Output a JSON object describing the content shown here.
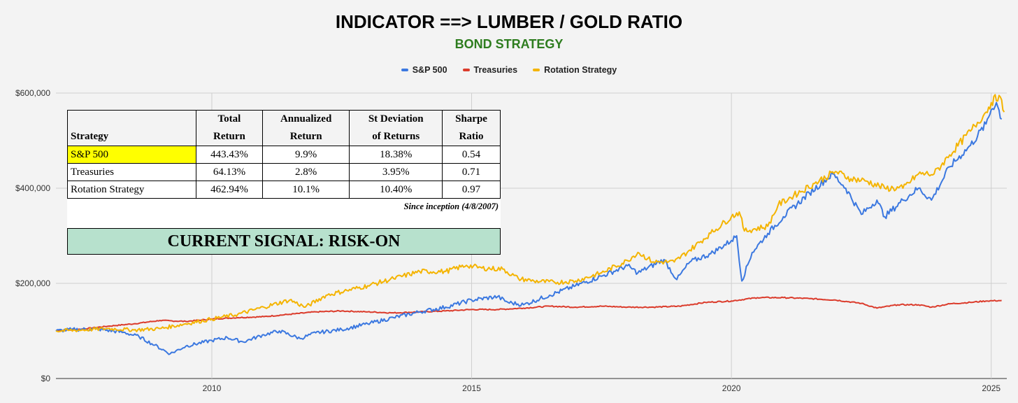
{
  "chart_data": {
    "type": "line",
    "title": "INDICATOR ==> LUMBER / GOLD RATIO",
    "subtitle": "BOND STRATEGY",
    "ylim": [
      0,
      600000
    ],
    "xlim": [
      2007.0,
      2025.3
    ],
    "y_ticks": [
      0,
      200000,
      400000,
      600000
    ],
    "y_tick_labels": [
      "$0",
      "$200,000",
      "$400,000",
      "$600,000"
    ],
    "x_ticks": [
      2010,
      2015,
      2020,
      2025
    ],
    "x_tick_labels": [
      "2010",
      "2015",
      "2020",
      "2025"
    ],
    "grid": true,
    "legend_position": "top",
    "series": [
      {
        "name": "S&P 500",
        "color": "#3b78e0",
        "points": [
          [
            2007.0,
            100000
          ],
          [
            2007.3,
            103000
          ],
          [
            2007.8,
            104000
          ],
          [
            2008.3,
            97000
          ],
          [
            2008.6,
            88000
          ],
          [
            2008.9,
            70000
          ],
          [
            2009.2,
            52000
          ],
          [
            2009.5,
            68000
          ],
          [
            2010.0,
            80000
          ],
          [
            2010.3,
            86000
          ],
          [
            2010.6,
            77000
          ],
          [
            2011.0,
            92000
          ],
          [
            2011.3,
            100000
          ],
          [
            2011.7,
            84000
          ],
          [
            2012.0,
            96000
          ],
          [
            2012.5,
            103000
          ],
          [
            2013.0,
            115000
          ],
          [
            2013.5,
            128000
          ],
          [
            2014.0,
            140000
          ],
          [
            2014.5,
            150000
          ],
          [
            2015.0,
            165000
          ],
          [
            2015.5,
            172000
          ],
          [
            2015.7,
            160000
          ],
          [
            2016.0,
            155000
          ],
          [
            2016.5,
            175000
          ],
          [
            2017.0,
            195000
          ],
          [
            2017.5,
            215000
          ],
          [
            2018.0,
            237000
          ],
          [
            2018.2,
            222000
          ],
          [
            2018.7,
            250000
          ],
          [
            2018.95,
            208000
          ],
          [
            2019.2,
            245000
          ],
          [
            2019.6,
            262000
          ],
          [
            2020.0,
            290000
          ],
          [
            2020.1,
            300000
          ],
          [
            2020.2,
            205000
          ],
          [
            2020.4,
            265000
          ],
          [
            2020.7,
            305000
          ],
          [
            2021.0,
            340000
          ],
          [
            2021.5,
            390000
          ],
          [
            2021.95,
            430000
          ],
          [
            2022.2,
            400000
          ],
          [
            2022.5,
            345000
          ],
          [
            2022.8,
            375000
          ],
          [
            2022.95,
            340000
          ],
          [
            2023.3,
            375000
          ],
          [
            2023.6,
            400000
          ],
          [
            2023.85,
            375000
          ],
          [
            2024.2,
            445000
          ],
          [
            2024.6,
            490000
          ],
          [
            2024.9,
            535000
          ],
          [
            2025.0,
            565000
          ],
          [
            2025.1,
            580000
          ],
          [
            2025.2,
            545000
          ]
        ]
      },
      {
        "name": "Treasuries",
        "color": "#db3b2b",
        "points": [
          [
            2007.0,
            100000
          ],
          [
            2007.5,
            104000
          ],
          [
            2008.0,
            110000
          ],
          [
            2008.5,
            115000
          ],
          [
            2009.0,
            122000
          ],
          [
            2009.5,
            120000
          ],
          [
            2010.0,
            125000
          ],
          [
            2010.5,
            128000
          ],
          [
            2011.0,
            130000
          ],
          [
            2011.5,
            135000
          ],
          [
            2012.0,
            140000
          ],
          [
            2012.5,
            142000
          ],
          [
            2013.0,
            140000
          ],
          [
            2013.5,
            138000
          ],
          [
            2014.0,
            140000
          ],
          [
            2014.5,
            142000
          ],
          [
            2015.0,
            145000
          ],
          [
            2015.5,
            145000
          ],
          [
            2016.0,
            148000
          ],
          [
            2016.5,
            152000
          ],
          [
            2017.0,
            150000
          ],
          [
            2017.5,
            152000
          ],
          [
            2018.0,
            150000
          ],
          [
            2018.5,
            150000
          ],
          [
            2019.0,
            152000
          ],
          [
            2019.5,
            160000
          ],
          [
            2020.0,
            163000
          ],
          [
            2020.5,
            170000
          ],
          [
            2021.0,
            170000
          ],
          [
            2021.5,
            168000
          ],
          [
            2022.0,
            165000
          ],
          [
            2022.5,
            158000
          ],
          [
            2022.8,
            148000
          ],
          [
            2023.2,
            155000
          ],
          [
            2023.6,
            155000
          ],
          [
            2023.85,
            150000
          ],
          [
            2024.2,
            157000
          ],
          [
            2024.6,
            160000
          ],
          [
            2024.9,
            163000
          ],
          [
            2025.2,
            164000
          ]
        ]
      },
      {
        "name": "Rotation Strategy",
        "color": "#f4b400",
        "points": [
          [
            2007.0,
            100000
          ],
          [
            2007.5,
            102000
          ],
          [
            2008.0,
            105000
          ],
          [
            2008.5,
            102000
          ],
          [
            2009.0,
            105000
          ],
          [
            2009.5,
            115000
          ],
          [
            2010.0,
            125000
          ],
          [
            2010.5,
            135000
          ],
          [
            2011.0,
            150000
          ],
          [
            2011.5,
            165000
          ],
          [
            2011.8,
            150000
          ],
          [
            2012.2,
            175000
          ],
          [
            2012.6,
            185000
          ],
          [
            2013.0,
            195000
          ],
          [
            2013.5,
            210000
          ],
          [
            2014.0,
            225000
          ],
          [
            2014.5,
            225000
          ],
          [
            2014.9,
            238000
          ],
          [
            2015.2,
            232000
          ],
          [
            2015.6,
            230000
          ],
          [
            2015.9,
            210000
          ],
          [
            2016.2,
            205000
          ],
          [
            2016.6,
            202000
          ],
          [
            2017.0,
            205000
          ],
          [
            2017.5,
            222000
          ],
          [
            2018.0,
            248000
          ],
          [
            2018.2,
            265000
          ],
          [
            2018.5,
            245000
          ],
          [
            2018.9,
            245000
          ],
          [
            2019.2,
            270000
          ],
          [
            2019.6,
            305000
          ],
          [
            2020.0,
            340000
          ],
          [
            2020.15,
            350000
          ],
          [
            2020.25,
            310000
          ],
          [
            2020.7,
            320000
          ],
          [
            2020.9,
            365000
          ],
          [
            2021.2,
            385000
          ],
          [
            2021.6,
            410000
          ],
          [
            2022.0,
            435000
          ],
          [
            2022.3,
            420000
          ],
          [
            2022.6,
            415000
          ],
          [
            2022.95,
            400000
          ],
          [
            2023.3,
            400000
          ],
          [
            2023.6,
            430000
          ],
          [
            2023.9,
            430000
          ],
          [
            2024.2,
            470000
          ],
          [
            2024.6,
            520000
          ],
          [
            2024.9,
            560000
          ],
          [
            2025.0,
            580000
          ],
          [
            2025.15,
            595000
          ],
          [
            2025.25,
            560000
          ]
        ]
      }
    ]
  },
  "table": {
    "headers": [
      [
        "",
        "Strategy"
      ],
      [
        "Total",
        "Return"
      ],
      [
        "Annualized",
        "Return"
      ],
      [
        "St Deviation",
        "of Returns"
      ],
      [
        "Sharpe",
        "Ratio"
      ]
    ],
    "rows": [
      [
        "S&P 500",
        "443.43%",
        "9.9%",
        "18.38%",
        "0.54"
      ],
      [
        "Treasuries",
        "64.13%",
        "2.8%",
        "3.95%",
        "0.71"
      ],
      [
        "Rotation Strategy",
        "462.94%",
        "10.1%",
        "10.40%",
        "0.97"
      ]
    ],
    "highlight_color": "#ffff00",
    "inception_note": "Since inception (4/8/2007)",
    "signal": "CURRENT SIGNAL: RISK-ON",
    "signal_color": "#b7e1cd"
  }
}
